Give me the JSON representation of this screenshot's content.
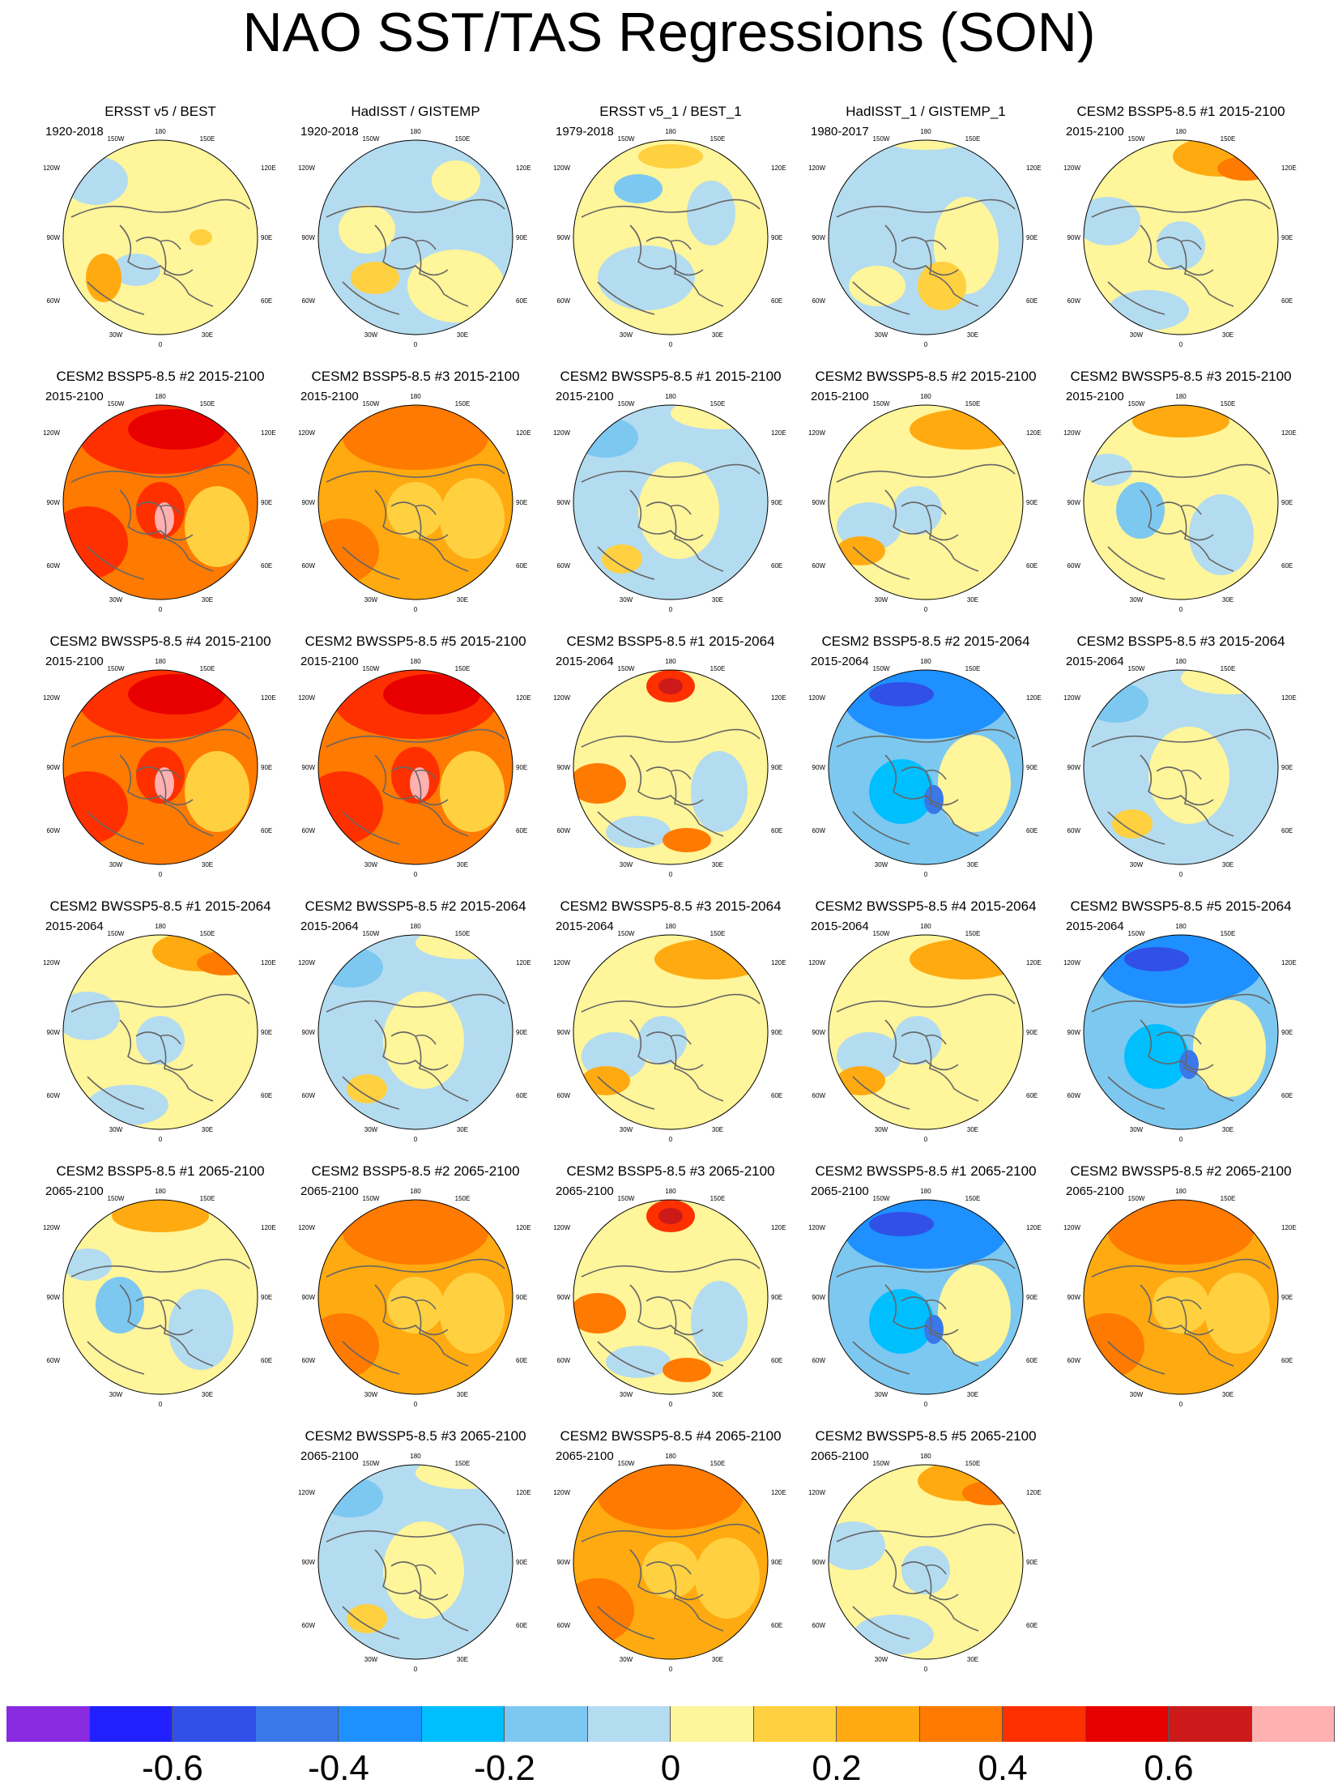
{
  "title": "NAO SST/TAS Regressions (SON)",
  "projection_labels": {
    "top": "180",
    "bottom": "0",
    "upper_left": "150W",
    "upper_right": "150E",
    "left_upper": "120W",
    "right_upper": "120E",
    "left": "90W",
    "right": "90E",
    "left_lower": "60W",
    "right_lower": "60E",
    "lower_left": "30W",
    "lower_right": "30E"
  },
  "panels": [
    {
      "title": "ERSST v5 / BEST",
      "period": "1920-2018",
      "pattern": "obs_a"
    },
    {
      "title": "HadISST / GISTEMP",
      "period": "1920-2018",
      "pattern": "obs_b"
    },
    {
      "title": "ERSST v5_1 / BEST_1",
      "period": "1979-2018",
      "pattern": "obs_c"
    },
    {
      "title": "HadISST_1 / GISTEMP_1",
      "period": "1980-2017",
      "pattern": "obs_d"
    },
    {
      "title": "CESM2 BSSP5-8.5 #1 2015-2100",
      "period": "2015-2100",
      "pattern": "mixed_orange_pacific"
    },
    {
      "title": "CESM2 BSSP5-8.5 #2 2015-2100",
      "period": "2015-2100",
      "pattern": "strong_warm"
    },
    {
      "title": "CESM2 BSSP5-8.5 #3 2015-2100",
      "period": "2015-2100",
      "pattern": "warm"
    },
    {
      "title": "CESM2 BWSSP5-8.5 #1 2015-2100",
      "period": "2015-2100",
      "pattern": "mixed_blue_pacific"
    },
    {
      "title": "CESM2 BWSSP5-8.5 #2 2015-2100",
      "period": "2015-2100",
      "pattern": "mixed_warm"
    },
    {
      "title": "CESM2 BWSSP5-8.5 #3 2015-2100",
      "period": "2015-2100",
      "pattern": "mixed_neutral"
    },
    {
      "title": "CESM2 BWSSP5-8.5 #4 2015-2100",
      "period": "2015-2100",
      "pattern": "strong_warm"
    },
    {
      "title": "CESM2 BWSSP5-8.5 #5 2015-2100",
      "period": "2015-2100",
      "pattern": "strong_warm"
    },
    {
      "title": "CESM2 BSSP5-8.5 #1 2015-2064",
      "period": "2015-2064",
      "pattern": "hotspot_pacific"
    },
    {
      "title": "CESM2 BSSP5-8.5 #2 2015-2064",
      "period": "2015-2064",
      "pattern": "cold"
    },
    {
      "title": "CESM2 BSSP5-8.5 #3 2015-2064",
      "period": "2015-2064",
      "pattern": "mixed_blue_pacific"
    },
    {
      "title": "CESM2 BWSSP5-8.5 #1 2015-2064",
      "period": "2015-2064",
      "pattern": "mixed_orange_pacific"
    },
    {
      "title": "CESM2 BWSSP5-8.5 #2 2015-2064",
      "period": "2015-2064",
      "pattern": "mixed_blue_pacific"
    },
    {
      "title": "CESM2 BWSSP5-8.5 #3 2015-2064",
      "period": "2015-2064",
      "pattern": "mixed_warm"
    },
    {
      "title": "CESM2 BWSSP5-8.5 #4 2015-2064",
      "period": "2015-2064",
      "pattern": "mixed_warm"
    },
    {
      "title": "CESM2 BWSSP5-8.5 #5 2015-2064",
      "period": "2015-2064",
      "pattern": "cold"
    },
    {
      "title": "CESM2 BSSP5-8.5 #1 2065-2100",
      "period": "2065-2100",
      "pattern": "mixed_neutral"
    },
    {
      "title": "CESM2 BSSP5-8.5 #2 2065-2100",
      "period": "2065-2100",
      "pattern": "warm"
    },
    {
      "title": "CESM2 BSSP5-8.5 #3 2065-2100",
      "period": "2065-2100",
      "pattern": "hotspot_pacific"
    },
    {
      "title": "CESM2 BWSSP5-8.5 #1 2065-2100",
      "period": "2065-2100",
      "pattern": "cold"
    },
    {
      "title": "CESM2 BWSSP5-8.5 #2 2065-2100",
      "period": "2065-2100",
      "pattern": "warm"
    },
    {
      "title": "CESM2 BWSSP5-8.5 #3 2065-2100",
      "period": "2065-2100",
      "pattern": "mixed_blue_pacific"
    },
    {
      "title": "CESM2 BWSSP5-8.5 #4 2065-2100",
      "period": "2065-2100",
      "pattern": "warm"
    },
    {
      "title": "CESM2 BWSSP5-8.5 #5 2065-2100",
      "period": "2065-2100",
      "pattern": "mixed_orange_pacific"
    }
  ],
  "colorbar": {
    "colors": [
      "#8a2be2",
      "#2020ff",
      "#3050e8",
      "#3a78ea",
      "#1e90ff",
      "#00bfff",
      "#7dc8f0",
      "#b4dcf0",
      "#fff59a",
      "#ffd040",
      "#ffaa10",
      "#ff7a00",
      "#ff3000",
      "#e80000",
      "#cc1a1a",
      "#ffb0b0"
    ],
    "tick_labels": [
      "-0.6",
      "-0.4",
      "-0.2",
      "0",
      "0.2",
      "0.4",
      "0.6"
    ]
  }
}
